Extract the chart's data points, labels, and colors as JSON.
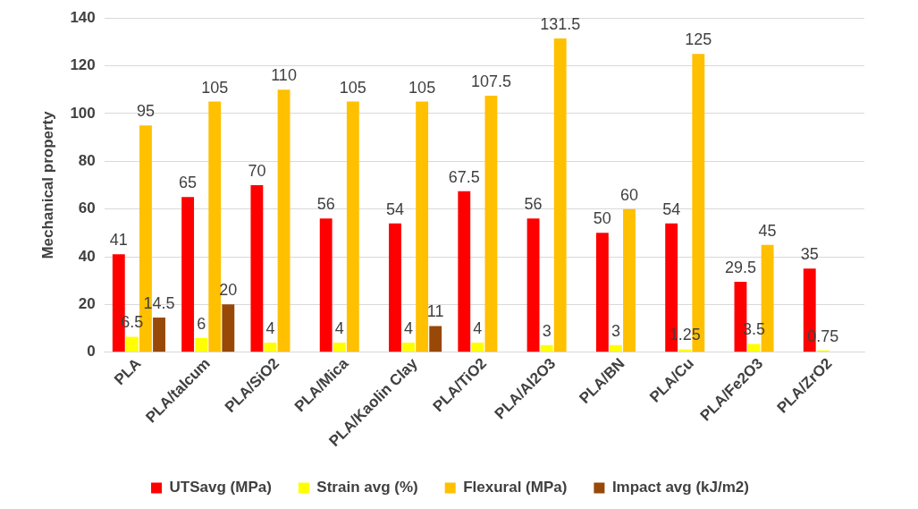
{
  "chart_data": {
    "type": "bar",
    "ylabel": "Mechanical property",
    "categories": [
      "PLA",
      "PLA/talcum",
      "PLA/SiO2",
      "PLA/Mica",
      "PLA/Kaolin Clay",
      "PLA/TiO2",
      "PLA/Al2O3",
      "PLA/BN",
      "PLA/Cu",
      "PLA/Fe2O3",
      "PLA/ZrO2"
    ],
    "series": [
      {
        "name": "UTSavg (MPa)",
        "color": "#ff0000",
        "values": [
          41,
          65,
          70,
          56,
          54,
          67.5,
          56,
          50,
          54,
          29.5,
          35
        ]
      },
      {
        "name": "Strain avg (%)",
        "color": "#ffff00",
        "values": [
          6.5,
          6,
          4,
          4,
          4,
          4,
          3,
          3,
          1.25,
          3.5,
          0.75
        ]
      },
      {
        "name": "Flexural (MPa)",
        "color": "#ffc000",
        "values": [
          95,
          105,
          110,
          105,
          105,
          107.5,
          131.5,
          60,
          125,
          45,
          null
        ]
      },
      {
        "name": "Impact avg (kJ/m2)",
        "color": "#984807",
        "values": [
          14.5,
          20,
          null,
          null,
          11,
          null,
          null,
          null,
          null,
          null,
          null
        ]
      }
    ],
    "ylim": [
      0,
      140
    ],
    "yticks": [
      0,
      20,
      40,
      60,
      80,
      100,
      120,
      140
    ],
    "grid": "y",
    "legend": "bottom",
    "data_labels": true
  }
}
